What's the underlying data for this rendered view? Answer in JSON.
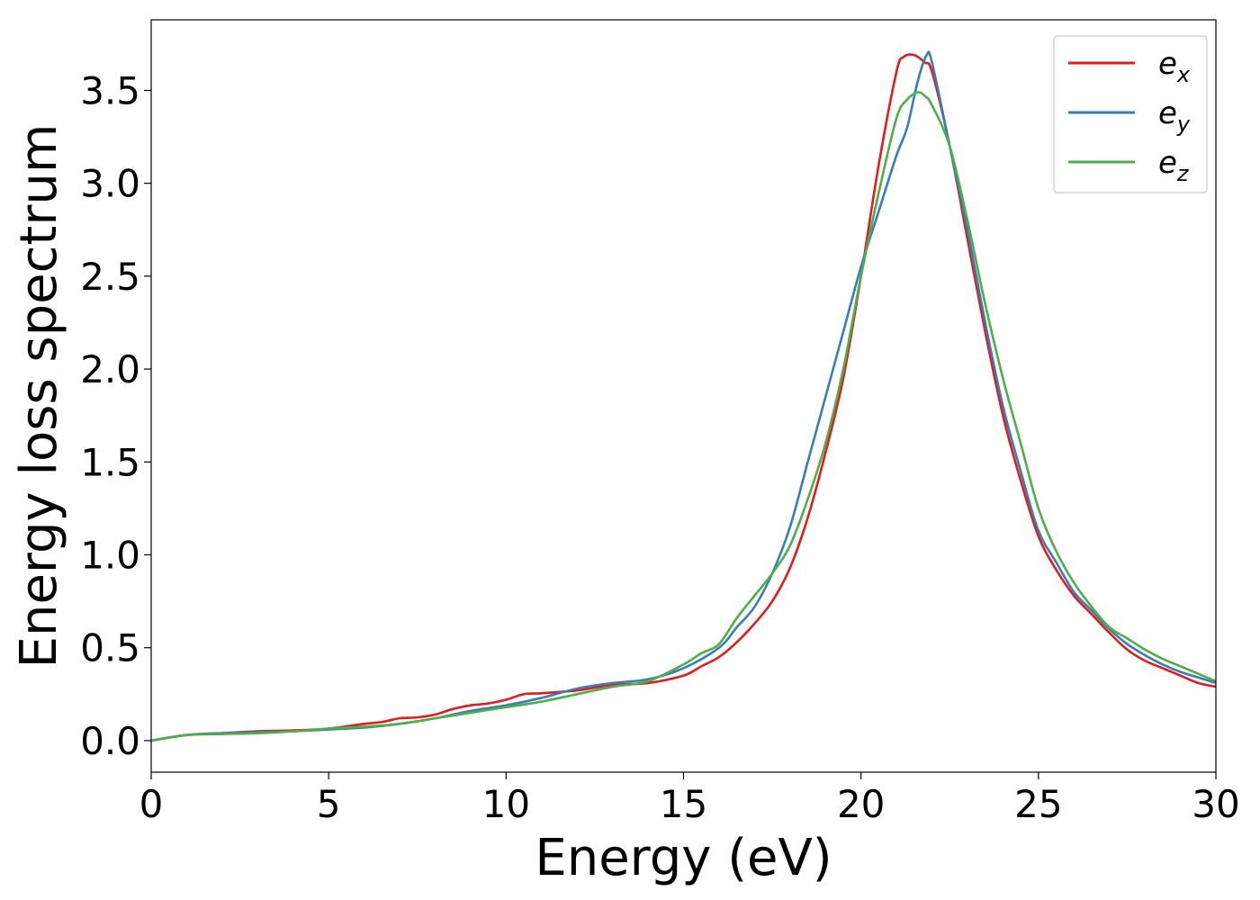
{
  "chart_data": {
    "type": "line",
    "title": "",
    "xlabel": "Energy (eV)",
    "ylabel": "Energy loss spectrum",
    "xlim": [
      0,
      30
    ],
    "ylim": [
      -0.17,
      3.88
    ],
    "xticks": [
      0,
      5,
      10,
      15,
      20,
      25,
      30
    ],
    "yticks": [
      0.0,
      0.5,
      1.0,
      1.5,
      2.0,
      2.5,
      3.0,
      3.5
    ],
    "xtick_labels": [
      "0",
      "5",
      "10",
      "15",
      "20",
      "25",
      "30"
    ],
    "ytick_labels": [
      "0.0",
      "0.5",
      "1.0",
      "1.5",
      "2.0",
      "2.5",
      "3.0",
      "3.5"
    ],
    "grid": false,
    "legend_position": "top-right",
    "series": [
      {
        "name": "e",
        "subscript": "x",
        "color": "#e41a1c",
        "x": [
          0,
          1,
          2,
          3,
          4,
          5,
          6,
          6.5,
          7,
          7.5,
          8,
          8.5,
          9,
          9.5,
          10,
          10.5,
          11,
          12,
          13,
          14,
          15,
          15.5,
          16,
          16.5,
          17,
          17.5,
          18,
          18.5,
          19,
          19.5,
          20,
          20.5,
          21,
          21.2,
          21.5,
          21.8,
          22,
          22.5,
          23,
          23.5,
          24,
          24.5,
          25,
          25.5,
          26,
          26.5,
          27,
          27.5,
          28,
          28.5,
          29,
          29.5,
          30
        ],
        "y": [
          0.0,
          0.03,
          0.04,
          0.05,
          0.055,
          0.065,
          0.09,
          0.1,
          0.12,
          0.125,
          0.14,
          0.17,
          0.19,
          0.2,
          0.22,
          0.25,
          0.255,
          0.27,
          0.3,
          0.31,
          0.35,
          0.4,
          0.45,
          0.53,
          0.63,
          0.75,
          0.93,
          1.2,
          1.55,
          1.95,
          2.5,
          3.1,
          3.6,
          3.68,
          3.69,
          3.65,
          3.6,
          3.2,
          2.7,
          2.2,
          1.75,
          1.4,
          1.1,
          0.92,
          0.78,
          0.68,
          0.58,
          0.49,
          0.43,
          0.39,
          0.35,
          0.31,
          0.29
        ]
      },
      {
        "name": "e",
        "subscript": "y",
        "color": "#377eb8",
        "x": [
          0,
          1,
          2,
          3,
          4,
          5,
          6,
          7,
          8,
          9,
          10,
          11,
          12,
          13,
          14,
          15,
          16,
          16.5,
          17,
          17.5,
          18,
          18.5,
          19,
          19.5,
          20,
          20.5,
          21,
          21.3,
          21.6,
          21.85,
          22,
          22.5,
          23,
          23.5,
          24,
          24.5,
          25,
          25.5,
          26,
          26.5,
          27,
          27.5,
          28,
          28.5,
          29,
          29.5,
          30
        ],
        "y": [
          0.0,
          0.03,
          0.04,
          0.045,
          0.05,
          0.06,
          0.07,
          0.09,
          0.12,
          0.16,
          0.19,
          0.23,
          0.28,
          0.31,
          0.33,
          0.39,
          0.5,
          0.61,
          0.72,
          0.9,
          1.15,
          1.5,
          1.85,
          2.2,
          2.55,
          2.85,
          3.15,
          3.3,
          3.55,
          3.69,
          3.65,
          3.2,
          2.75,
          2.25,
          1.8,
          1.45,
          1.13,
          0.96,
          0.8,
          0.7,
          0.6,
          0.52,
          0.46,
          0.41,
          0.37,
          0.34,
          0.31
        ]
      },
      {
        "name": "e",
        "subscript": "z",
        "color": "#4daf4a",
        "x": [
          0,
          1,
          2,
          3,
          4,
          5,
          6,
          7,
          8,
          9,
          10,
          11,
          12,
          13,
          14,
          15,
          15.5,
          16,
          16.5,
          17,
          17.5,
          18,
          18.5,
          19,
          19.5,
          20,
          20.5,
          21,
          21.3,
          21.6,
          21.8,
          22,
          22.5,
          23,
          23.5,
          24,
          24.5,
          25,
          25.5,
          26,
          26.5,
          27,
          27.5,
          28,
          28.5,
          29,
          29.5,
          30
        ],
        "y": [
          0.0,
          0.03,
          0.035,
          0.04,
          0.05,
          0.065,
          0.075,
          0.09,
          0.12,
          0.15,
          0.18,
          0.21,
          0.25,
          0.29,
          0.32,
          0.41,
          0.47,
          0.52,
          0.66,
          0.78,
          0.9,
          1.05,
          1.3,
          1.6,
          2.0,
          2.5,
          2.95,
          3.35,
          3.45,
          3.49,
          3.47,
          3.42,
          3.2,
          2.8,
          2.35,
          1.95,
          1.6,
          1.25,
          1.02,
          0.85,
          0.72,
          0.61,
          0.55,
          0.49,
          0.44,
          0.4,
          0.36,
          0.32
        ]
      }
    ]
  }
}
